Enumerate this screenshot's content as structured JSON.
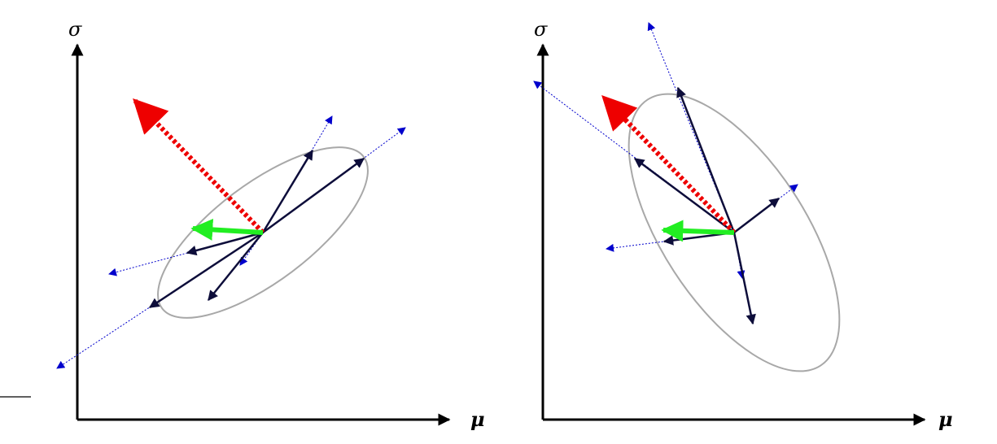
{
  "panels": [
    {
      "axis_labels": {
        "x": "μ",
        "y": "σ"
      }
    },
    {
      "axis_labels": {
        "x": "μ",
        "y": "σ"
      }
    }
  ],
  "colors": {
    "axis": "#000000",
    "ellipse": "#a8a8a8",
    "sample_arrow": "#0d0d3a",
    "extension": "#0000cc",
    "natural_gradient": "#ee0000",
    "mean_gradient": "#22ee22"
  },
  "legend": {}
}
